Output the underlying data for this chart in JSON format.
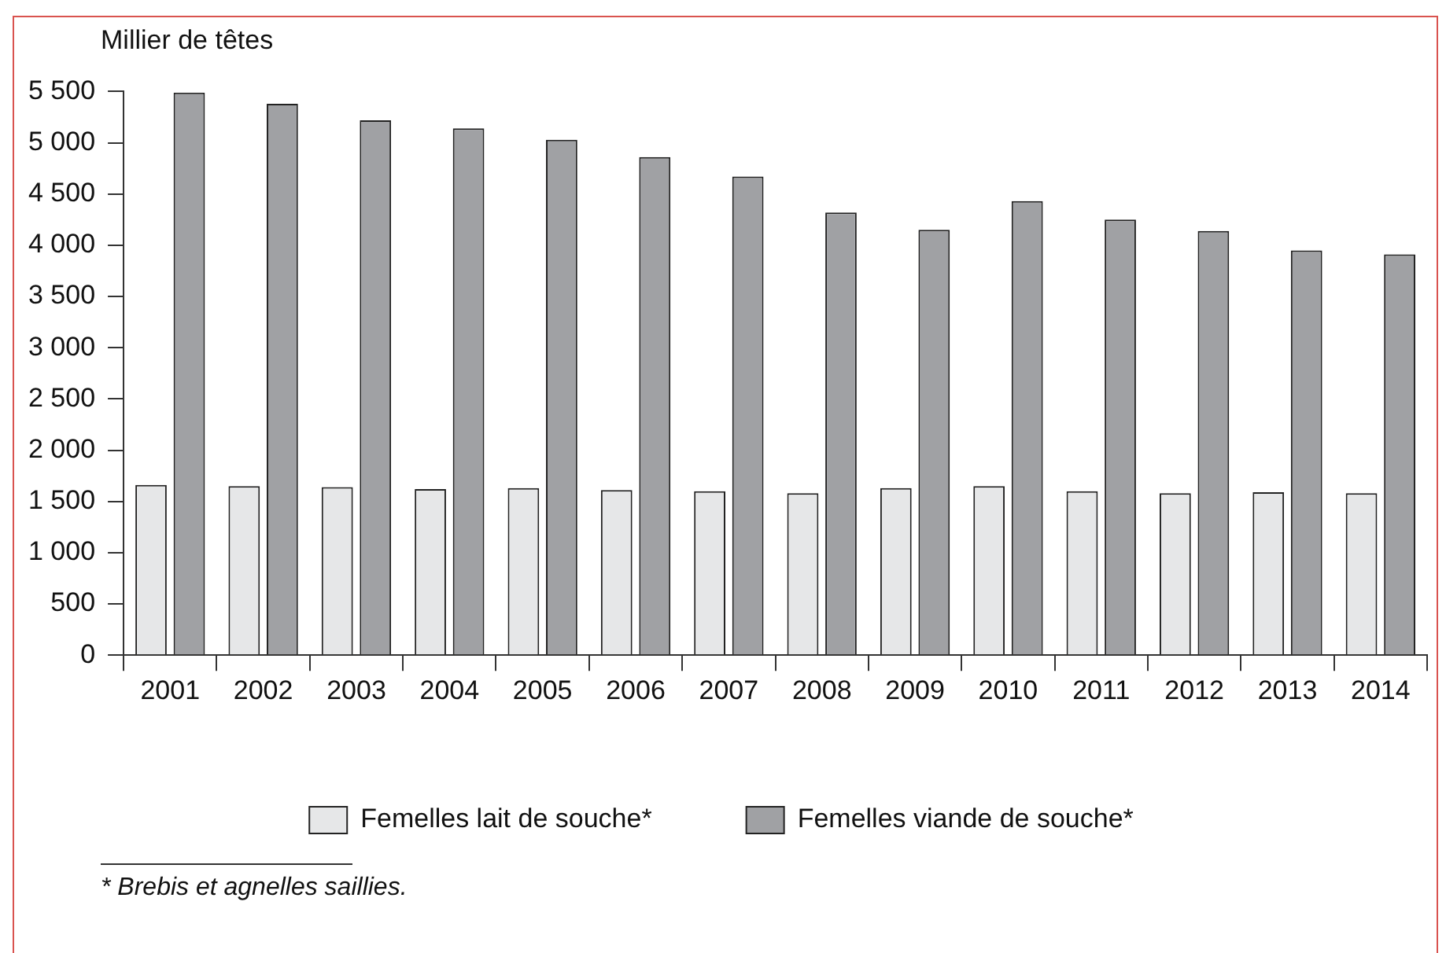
{
  "chart_data": {
    "type": "bar",
    "ylabel": "Millier de têtes",
    "categories": [
      "2001",
      "2002",
      "2003",
      "2004",
      "2005",
      "2006",
      "2007",
      "2008",
      "2009",
      "2010",
      "2011",
      "2012",
      "2013",
      "2014"
    ],
    "series": [
      {
        "name": "Femelles lait de souche*",
        "color": "#e6e7e8",
        "values": [
          1660,
          1650,
          1640,
          1620,
          1630,
          1610,
          1600,
          1580,
          1630,
          1650,
          1600,
          1580,
          1590,
          1580
        ]
      },
      {
        "name": "Femelles viande de souche*",
        "color": "#a0a1a4",
        "values": [
          5490,
          5380,
          5220,
          5140,
          5030,
          4860,
          4670,
          4320,
          4150,
          4430,
          4250,
          4140,
          3950,
          3910
        ]
      }
    ],
    "ylim": [
      0,
      5500
    ],
    "yticks": [
      0,
      500,
      {
        "value": 1000,
        "label": "1 000"
      },
      {
        "value": 1500,
        "label": "1 500"
      },
      {
        "value": 2000,
        "label": "2 000"
      },
      {
        "value": 2500,
        "label": "2 500"
      },
      {
        "value": 3000,
        "label": "3 000"
      },
      {
        "value": 3500,
        "label": "3 500"
      },
      {
        "value": 4000,
        "label": "4 000"
      },
      {
        "value": 4500,
        "label": "4 500"
      },
      {
        "value": 5000,
        "label": "5 000"
      },
      {
        "value": 5500,
        "label": "5 500"
      }
    ],
    "grid": false,
    "legend": "bottom",
    "annotations": [
      "* Brebis et agnelles saillies."
    ]
  }
}
